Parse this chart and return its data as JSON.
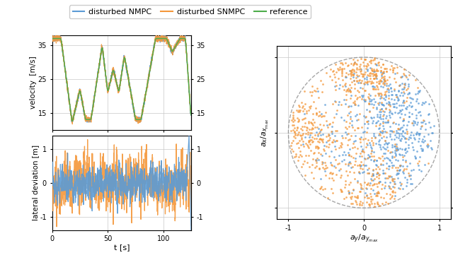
{
  "legend_labels": [
    "disturbed NMPC",
    "disturbed SNMPC",
    "reference"
  ],
  "color_nmpc": "#5b9bd5",
  "color_snmpc": "#f4973a",
  "color_ref": "#4dac4a",
  "vel_ylim": [
    10,
    38
  ],
  "vel_yticks": [
    15,
    25,
    35
  ],
  "vel_ylabel": "velocity  [m/s]",
  "lat_ylim": [
    -1.4,
    1.4
  ],
  "lat_yticks": [
    -1,
    0,
    1
  ],
  "lat_ylabel": "lateral deviation [m]",
  "time_xlim": [
    0,
    125
  ],
  "time_xticks": [
    0,
    50,
    100
  ],
  "time_xlabel": "t [s]",
  "scatter_xlim": [
    -1.15,
    1.15
  ],
  "scatter_ylim": [
    -1.15,
    1.15
  ],
  "scatter_xticks": [
    -1,
    0,
    1
  ],
  "scatter_yticks": [
    -1,
    0,
    1
  ],
  "scatter_xlabel": "$a_y / a_{y_{max}}$",
  "scatter_ylabel": "$a_x / a_{x_{max}}$",
  "scatter_left_yticks": [
    35,
    25,
    15,
    1,
    0,
    -1
  ],
  "grid_color": "#c8c8c8",
  "background": "#ffffff"
}
